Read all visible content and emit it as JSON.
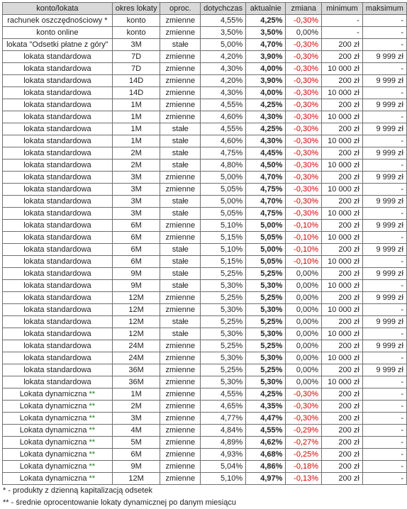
{
  "headers": [
    "konto/lokata",
    "okres lokaty",
    "oproc.",
    "dotychczas",
    "aktualnie",
    "zmiana",
    "minimum",
    "maksimum"
  ],
  "rows": [
    {
      "name": "rachunek oszczędnościowy",
      "mark": "*",
      "okres": "konto",
      "oproc": "zmienne",
      "dotychczas": "4,55%",
      "aktualnie": "4,25%",
      "zmiana": "-0,30%",
      "minimum": "-",
      "maksimum": "-"
    },
    {
      "name": "konto online",
      "mark": "",
      "okres": "konto",
      "oproc": "zmienne",
      "dotychczas": "3,50%",
      "aktualnie": "3,50%",
      "zmiana": "0,00%",
      "minimum": "-",
      "maksimum": "-"
    },
    {
      "name": "lokata \"Odsetki płatne z góry\"",
      "mark": "",
      "okres": "3M",
      "oproc": "stałe",
      "dotychczas": "5,00%",
      "aktualnie": "4,70%",
      "zmiana": "-0,30%",
      "minimum": "200 zł",
      "maksimum": "-"
    },
    {
      "name": "lokata standardowa",
      "mark": "",
      "okres": "7D",
      "oproc": "zmienne",
      "dotychczas": "4,20%",
      "aktualnie": "3,90%",
      "zmiana": "-0,30%",
      "minimum": "200 zł",
      "maksimum": "9 999 zł"
    },
    {
      "name": "lokata standardowa",
      "mark": "",
      "okres": "7D",
      "oproc": "zmienne",
      "dotychczas": "4,30%",
      "aktualnie": "4,00%",
      "zmiana": "-0,30%",
      "minimum": "10 000 zł",
      "maksimum": "-"
    },
    {
      "name": "lokata standardowa",
      "mark": "",
      "okres": "14D",
      "oproc": "zmienne",
      "dotychczas": "4,20%",
      "aktualnie": "3,90%",
      "zmiana": "-0,30%",
      "minimum": "200 zł",
      "maksimum": "9 999 zł"
    },
    {
      "name": "lokata standardowa",
      "mark": "",
      "okres": "14D",
      "oproc": "zmienne",
      "dotychczas": "4,30%",
      "aktualnie": "4,00%",
      "zmiana": "-0,30%",
      "minimum": "10 000 zł",
      "maksimum": "-"
    },
    {
      "name": "lokata standardowa",
      "mark": "",
      "okres": "1M",
      "oproc": "zmienne",
      "dotychczas": "4,55%",
      "aktualnie": "4,25%",
      "zmiana": "-0,30%",
      "minimum": "200 zł",
      "maksimum": "9 999 zł"
    },
    {
      "name": "lokata standardowa",
      "mark": "",
      "okres": "1M",
      "oproc": "zmienne",
      "dotychczas": "4,60%",
      "aktualnie": "4,30%",
      "zmiana": "-0,30%",
      "minimum": "10 000 zł",
      "maksimum": "-"
    },
    {
      "name": "lokata standardowa",
      "mark": "",
      "okres": "1M",
      "oproc": "stałe",
      "dotychczas": "4,55%",
      "aktualnie": "4,25%",
      "zmiana": "-0,30%",
      "minimum": "200 zł",
      "maksimum": "9 999 zł"
    },
    {
      "name": "lokata standardowa",
      "mark": "",
      "okres": "1M",
      "oproc": "stałe",
      "dotychczas": "4,60%",
      "aktualnie": "4,30%",
      "zmiana": "-0,30%",
      "minimum": "10 000 zł",
      "maksimum": "-"
    },
    {
      "name": "lokata standardowa",
      "mark": "",
      "okres": "2M",
      "oproc": "stałe",
      "dotychczas": "4,75%",
      "aktualnie": "4,45%",
      "zmiana": "-0,30%",
      "minimum": "200 zł",
      "maksimum": "9 999 zł"
    },
    {
      "name": "lokata standardowa",
      "mark": "",
      "okres": "2M",
      "oproc": "stałe",
      "dotychczas": "4,80%",
      "aktualnie": "4,50%",
      "zmiana": "-0,30%",
      "minimum": "10 000 zł",
      "maksimum": "-"
    },
    {
      "name": "lokata standardowa",
      "mark": "",
      "okres": "3M",
      "oproc": "zmienne",
      "dotychczas": "5,00%",
      "aktualnie": "4,70%",
      "zmiana": "-0,30%",
      "minimum": "200 zł",
      "maksimum": "9 999 zł"
    },
    {
      "name": "lokata standardowa",
      "mark": "",
      "okres": "3M",
      "oproc": "zmienne",
      "dotychczas": "5,05%",
      "aktualnie": "4,75%",
      "zmiana": "-0,30%",
      "minimum": "10 000 zł",
      "maksimum": "-"
    },
    {
      "name": "lokata standardowa",
      "mark": "",
      "okres": "3M",
      "oproc": "stałe",
      "dotychczas": "5,00%",
      "aktualnie": "4,70%",
      "zmiana": "-0,30%",
      "minimum": "200 zł",
      "maksimum": "9 999 zł"
    },
    {
      "name": "lokata standardowa",
      "mark": "",
      "okres": "3M",
      "oproc": "stałe",
      "dotychczas": "5,05%",
      "aktualnie": "4,75%",
      "zmiana": "-0,30%",
      "minimum": "10 000 zł",
      "maksimum": "-"
    },
    {
      "name": "lokata standardowa",
      "mark": "",
      "okres": "6M",
      "oproc": "zmienne",
      "dotychczas": "5,10%",
      "aktualnie": "5,00%",
      "zmiana": "-0,10%",
      "minimum": "200 zł",
      "maksimum": "9 999 zł"
    },
    {
      "name": "lokata standardowa",
      "mark": "",
      "okres": "6M",
      "oproc": "zmienne",
      "dotychczas": "5,15%",
      "aktualnie": "5,05%",
      "zmiana": "-0,10%",
      "minimum": "10 000 zł",
      "maksimum": "-"
    },
    {
      "name": "lokata standardowa",
      "mark": "",
      "okres": "6M",
      "oproc": "stałe",
      "dotychczas": "5,10%",
      "aktualnie": "5,00%",
      "zmiana": "-0,10%",
      "minimum": "200 zł",
      "maksimum": "9 999 zł"
    },
    {
      "name": "lokata standardowa",
      "mark": "",
      "okres": "6M",
      "oproc": "stałe",
      "dotychczas": "5,15%",
      "aktualnie": "5,05%",
      "zmiana": "-0,10%",
      "minimum": "10 000 zł",
      "maksimum": "-"
    },
    {
      "name": "lokata standardowa",
      "mark": "",
      "okres": "9M",
      "oproc": "stałe",
      "dotychczas": "5,25%",
      "aktualnie": "5,25%",
      "zmiana": "0,00%",
      "minimum": "200 zł",
      "maksimum": "9 999 zł"
    },
    {
      "name": "lokata standardowa",
      "mark": "",
      "okres": "9M",
      "oproc": "stałe",
      "dotychczas": "5,30%",
      "aktualnie": "5,30%",
      "zmiana": "0,00%",
      "minimum": "10 000 zł",
      "maksimum": "-"
    },
    {
      "name": "lokata standardowa",
      "mark": "",
      "okres": "12M",
      "oproc": "zmienne",
      "dotychczas": "5,25%",
      "aktualnie": "5,25%",
      "zmiana": "0,00%",
      "minimum": "200 zł",
      "maksimum": "9 999 zł"
    },
    {
      "name": "lokata standardowa",
      "mark": "",
      "okres": "12M",
      "oproc": "zmienne",
      "dotychczas": "5,30%",
      "aktualnie": "5,30%",
      "zmiana": "0,00%",
      "minimum": "10 000 zł",
      "maksimum": "-"
    },
    {
      "name": "lokata standardowa",
      "mark": "",
      "okres": "12M",
      "oproc": "stałe",
      "dotychczas": "5,25%",
      "aktualnie": "5,25%",
      "zmiana": "0,00%",
      "minimum": "200 zł",
      "maksimum": "9 999 zł"
    },
    {
      "name": "lokata standardowa",
      "mark": "",
      "okres": "12M",
      "oproc": "stałe",
      "dotychczas": "5,30%",
      "aktualnie": "5,30%",
      "zmiana": "0,00%",
      "minimum": "10 000 zł",
      "maksimum": "-"
    },
    {
      "name": "lokata standardowa",
      "mark": "",
      "okres": "24M",
      "oproc": "zmienne",
      "dotychczas": "5,25%",
      "aktualnie": "5,25%",
      "zmiana": "0,00%",
      "minimum": "200 zł",
      "maksimum": "9 999 zł"
    },
    {
      "name": "lokata standardowa",
      "mark": "",
      "okres": "24M",
      "oproc": "zmienne",
      "dotychczas": "5,30%",
      "aktualnie": "5,30%",
      "zmiana": "0,00%",
      "minimum": "10 000 zł",
      "maksimum": "-"
    },
    {
      "name": "lokata standardowa",
      "mark": "",
      "okres": "36M",
      "oproc": "zmienne",
      "dotychczas": "5,25%",
      "aktualnie": "5,25%",
      "zmiana": "0,00%",
      "minimum": "200 zł",
      "maksimum": "9 999 zł"
    },
    {
      "name": "lokata standardowa",
      "mark": "",
      "okres": "36M",
      "oproc": "zmienne",
      "dotychczas": "5,30%",
      "aktualnie": "5,30%",
      "zmiana": "0,00%",
      "minimum": "10 000 zł",
      "maksimum": "-"
    },
    {
      "name": "Lokata dynamiczna",
      "mark": "**",
      "okres": "1M",
      "oproc": "zmienne",
      "dotychczas": "4,55%",
      "aktualnie": "4,25%",
      "zmiana": "-0,30%",
      "minimum": "200 zł",
      "maksimum": "-"
    },
    {
      "name": "Lokata dynamiczna",
      "mark": "**",
      "okres": "2M",
      "oproc": "zmienne",
      "dotychczas": "4,65%",
      "aktualnie": "4,35%",
      "zmiana": "-0,30%",
      "minimum": "200 zł",
      "maksimum": "-"
    },
    {
      "name": "Lokata dynamiczna",
      "mark": "**",
      "okres": "3M",
      "oproc": "zmienne",
      "dotychczas": "4,77%",
      "aktualnie": "4,47%",
      "zmiana": "-0,30%",
      "minimum": "200 zł",
      "maksimum": "-"
    },
    {
      "name": "Lokata dynamiczna",
      "mark": "**",
      "okres": "4M",
      "oproc": "zmienne",
      "dotychczas": "4,84%",
      "aktualnie": "4,55%",
      "zmiana": "-0,29%",
      "minimum": "200 zł",
      "maksimum": "-"
    },
    {
      "name": "Lokata dynamiczna",
      "mark": "**",
      "okres": "5M",
      "oproc": "zmienne",
      "dotychczas": "4,89%",
      "aktualnie": "4,62%",
      "zmiana": "-0,27%",
      "minimum": "200 zł",
      "maksimum": "-"
    },
    {
      "name": "Lokata dynamiczna",
      "mark": "**",
      "okres": "6M",
      "oproc": "zmienne",
      "dotychczas": "4,93%",
      "aktualnie": "4,68%",
      "zmiana": "-0,25%",
      "minimum": "200 zł",
      "maksimum": "-"
    },
    {
      "name": "Lokata dynamiczna",
      "mark": "**",
      "okres": "9M",
      "oproc": "zmienne",
      "dotychczas": "5,04%",
      "aktualnie": "4,86%",
      "zmiana": "-0,18%",
      "minimum": "200 zł",
      "maksimum": "-"
    },
    {
      "name": "Lokata dynamiczna",
      "mark": "**",
      "okres": "12M",
      "oproc": "zmienne",
      "dotychczas": "5,10%",
      "aktualnie": "4,97%",
      "zmiana": "-0,13%",
      "minimum": "200 zł",
      "maksimum": "-"
    }
  ],
  "notes": [
    "* - produkty z dzienną kapitalizacją odsetek",
    "** - średnie oprocentowanie lokaty dynamicznej po danym miesiącu"
  ],
  "colors": {
    "header_bg": "#d9d9d9",
    "negative": "#d40000",
    "stars": "#1e7a1e",
    "border": "#6f6f6f"
  }
}
